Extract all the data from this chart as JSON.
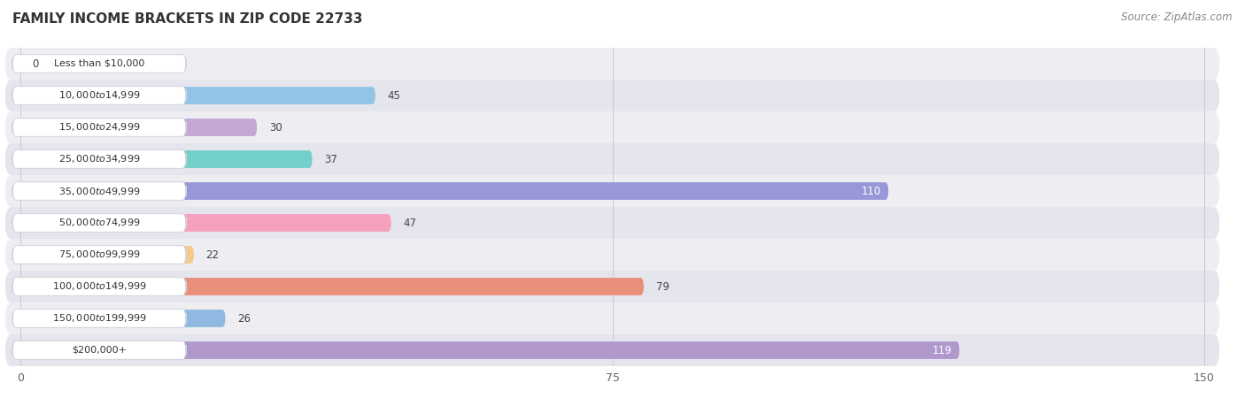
{
  "title": "FAMILY INCOME BRACKETS IN ZIP CODE 22733",
  "source": "Source: ZipAtlas.com",
  "categories": [
    "Less than $10,000",
    "$10,000 to $14,999",
    "$15,000 to $24,999",
    "$25,000 to $34,999",
    "$35,000 to $49,999",
    "$50,000 to $74,999",
    "$75,000 to $99,999",
    "$100,000 to $149,999",
    "$150,000 to $199,999",
    "$200,000+"
  ],
  "values": [
    0,
    45,
    30,
    37,
    110,
    47,
    22,
    79,
    26,
    119
  ],
  "bar_colors": [
    "#f4a9a0",
    "#93c4e8",
    "#c4a8d4",
    "#72cfc9",
    "#9898d8",
    "#f4a0be",
    "#f5c98a",
    "#e8907a",
    "#90b8e0",
    "#b098cc"
  ],
  "label_colors": [
    "#555555",
    "#555555",
    "#555555",
    "#555555",
    "#ffffff",
    "#555555",
    "#555555",
    "#555555",
    "#555555",
    "#ffffff"
  ],
  "xlim": [
    0,
    150
  ],
  "xticks": [
    0,
    75,
    150
  ],
  "title_fontsize": 11,
  "source_fontsize": 8.5,
  "row_bg_even": "#f2f2f5",
  "row_bg_odd": "#e8e8f0",
  "bar_height": 0.55
}
